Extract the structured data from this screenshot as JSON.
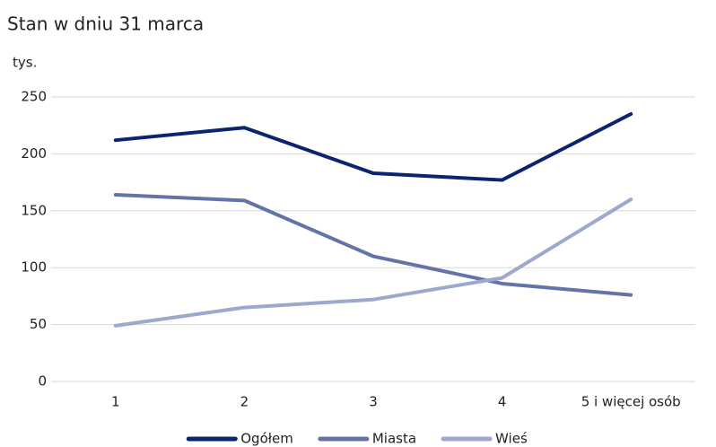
{
  "chart_data": {
    "type": "line",
    "title": "Stan w dniu 31 marca",
    "y_label": "tys.",
    "categories": [
      "1",
      "2",
      "3",
      "4",
      "5 i więcej osób"
    ],
    "series": [
      {
        "name": "Ogółem",
        "color": "#0a2472",
        "values": [
          212,
          223,
          183,
          177,
          235
        ]
      },
      {
        "name": "Miasta",
        "color": "#6574a8",
        "values": [
          164,
          159,
          110,
          86,
          76
        ]
      },
      {
        "name": "Wieś",
        "color": "#9ca8cd",
        "values": [
          49,
          65,
          72,
          91,
          160
        ]
      }
    ],
    "ylim": [
      0,
      250
    ],
    "yticks": [
      0,
      50,
      100,
      150,
      200,
      250
    ],
    "grid": true,
    "legend": "bottom"
  }
}
